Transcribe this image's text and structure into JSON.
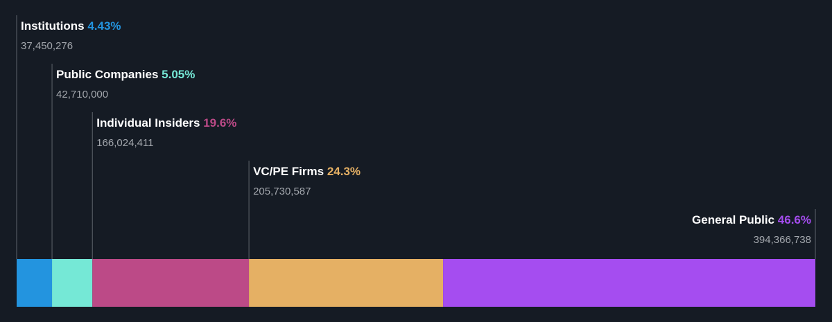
{
  "chart_data": {
    "type": "stacked-bar",
    "series": [
      {
        "name": "Institutions",
        "color": "#2394df",
        "values": [
          4.43
        ],
        "value_labels": [
          "4.43%"
        ],
        "detail": "37,450,276"
      },
      {
        "name": "Public Companies",
        "color": "#75e8d6",
        "values": [
          5.05
        ],
        "value_labels": [
          "5.05%"
        ],
        "detail": "42,710,000"
      },
      {
        "name": "Individual Insiders",
        "color": "#bc4a87",
        "values": [
          19.6
        ],
        "value_labels": [
          "19.6%"
        ],
        "detail": "166,024,411"
      },
      {
        "name": "VC/PE Firms",
        "color": "#e5b064",
        "values": [
          24.3
        ],
        "value_labels": [
          "24.3%"
        ],
        "detail": "205,730,587"
      },
      {
        "name": "General Public",
        "color": "#a54df0",
        "values": [
          46.6
        ],
        "value_labels": [
          "46.6%"
        ],
        "detail": "394,366,738"
      }
    ]
  }
}
